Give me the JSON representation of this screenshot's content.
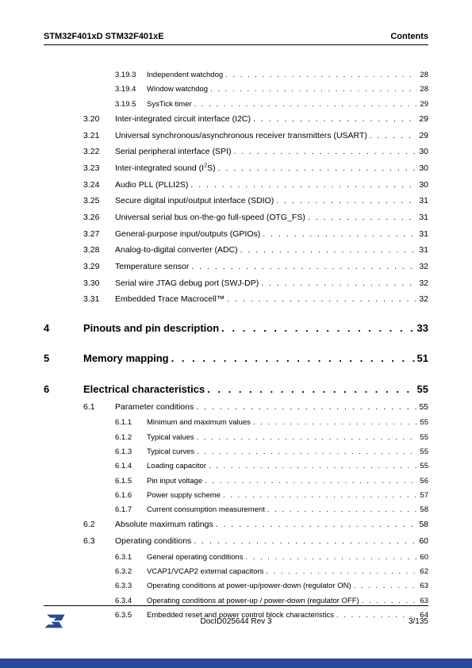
{
  "header": {
    "left": "STM32F401xD STM32F401xE",
    "right": "Contents"
  },
  "toc": [
    {
      "level": 2,
      "num": "3.19.3",
      "title": "Independent watchdog",
      "page": "28"
    },
    {
      "level": 2,
      "num": "3.19.4",
      "title": "Window watchdog",
      "page": "28"
    },
    {
      "level": 2,
      "num": "3.19.5",
      "title": "SysTick timer",
      "page": "29"
    },
    {
      "level": 1,
      "num": "3.20",
      "title": "Inter-integrated circuit interface (I2C)",
      "page": "29"
    },
    {
      "level": 1,
      "num": "3.21",
      "title": "Universal synchronous/asynchronous receiver transmitters (USART)",
      "page": "29"
    },
    {
      "level": 1,
      "num": "3.22",
      "title": "Serial peripheral interface (SPI)",
      "page": "30"
    },
    {
      "level": 1,
      "num": "3.23",
      "title": "Inter-integrated sound (I2S)",
      "page": "30",
      "sup": true
    },
    {
      "level": 1,
      "num": "3.24",
      "title": "Audio PLL (PLLI2S)",
      "page": "30"
    },
    {
      "level": 1,
      "num": "3.25",
      "title": "Secure digital input/output interface (SDIO)",
      "page": "31"
    },
    {
      "level": 1,
      "num": "3.26",
      "title": "Universal serial bus on-the-go full-speed (OTG_FS)",
      "page": "31"
    },
    {
      "level": 1,
      "num": "3.27",
      "title": "General-purpose input/outputs (GPIOs)",
      "page": "31"
    },
    {
      "level": 1,
      "num": "3.28",
      "title": "Analog-to-digital converter (ADC)",
      "page": "31"
    },
    {
      "level": 1,
      "num": "3.29",
      "title": "Temperature sensor",
      "page": "32"
    },
    {
      "level": 1,
      "num": "3.30",
      "title": "Serial wire JTAG debug port (SWJ-DP)",
      "page": "32"
    },
    {
      "level": 1,
      "num": "3.31",
      "title": "Embedded Trace Macrocell™",
      "page": "32"
    },
    {
      "level": 0,
      "num": "4",
      "title": "Pinouts and pin description",
      "page": "33"
    },
    {
      "level": 0,
      "num": "5",
      "title": "Memory mapping",
      "page": "51"
    },
    {
      "level": 0,
      "num": "6",
      "title": "Electrical characteristics",
      "page": "55"
    },
    {
      "level": 1,
      "num": "6.1",
      "title": "Parameter conditions",
      "page": "55"
    },
    {
      "level": 2,
      "num": "6.1.1",
      "title": "Minimum and maximum values",
      "page": "55"
    },
    {
      "level": 2,
      "num": "6.1.2",
      "title": "Typical values",
      "page": "55"
    },
    {
      "level": 2,
      "num": "6.1.3",
      "title": "Typical curves",
      "page": "55"
    },
    {
      "level": 2,
      "num": "6.1.4",
      "title": "Loading capacitor",
      "page": "55"
    },
    {
      "level": 2,
      "num": "6.1.5",
      "title": "Pin input voltage",
      "page": "56"
    },
    {
      "level": 2,
      "num": "6.1.6",
      "title": "Power supply scheme",
      "page": "57"
    },
    {
      "level": 2,
      "num": "6.1.7",
      "title": "Current consumption measurement",
      "page": "58"
    },
    {
      "level": 1,
      "num": "6.2",
      "title": "Absolute maximum ratings",
      "page": "58"
    },
    {
      "level": 1,
      "num": "6.3",
      "title": "Operating conditions",
      "page": "60"
    },
    {
      "level": 2,
      "num": "6.3.1",
      "title": "General operating conditions",
      "page": "60"
    },
    {
      "level": 2,
      "num": "6.3.2",
      "title": "VCAP1/VCAP2 external capacitors",
      "page": "62"
    },
    {
      "level": 2,
      "num": "6.3.3",
      "title": "Operating conditions at power-up/power-down (regulator ON)",
      "page": "63"
    },
    {
      "level": 2,
      "num": "6.3.4",
      "title": "Operating conditions at power-up / power-down (regulator OFF)",
      "page": "63"
    },
    {
      "level": 2,
      "num": "6.3.5",
      "title": "Embedded reset and power control block characteristics",
      "page": "64"
    }
  ],
  "footer": {
    "docid": "DocID025644 Rev 3",
    "page": "3/135"
  },
  "colors": {
    "bar": "#2b4a9b",
    "logo_fill": "#2b4a9b"
  }
}
